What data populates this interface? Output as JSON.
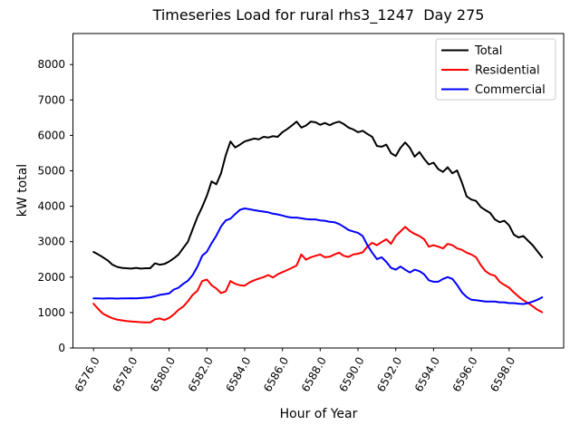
{
  "figure": {
    "background": "#ffffff",
    "spine_color": "#000000",
    "legend_border_color": "#cccccc",
    "legend_background": "#ffffff"
  },
  "chart_data": {
    "type": "line",
    "title": "Timeseries Load for rural rhs3_1247  Day 275",
    "xlabel": "Hour of Year",
    "ylabel": "kW total",
    "xlim": [
      6574.91,
      6600.89
    ],
    "ylim": [
      0,
      8875
    ],
    "grid": false,
    "legend": {
      "position": "upper right"
    },
    "xticks": {
      "values": [
        6576,
        6578,
        6580,
        6582,
        6584,
        6586,
        6588,
        6590,
        6592,
        6594,
        6596,
        6598
      ],
      "labels": [
        "6576.0",
        "6578.0",
        "6580.0",
        "6582.0",
        "6584.0",
        "6586.0",
        "6588.0",
        "6590.0",
        "6592.0",
        "6594.0",
        "6596.0",
        "6598.0"
      ],
      "rotation": -60
    },
    "yticks": {
      "values": [
        0,
        1000,
        2000,
        3000,
        4000,
        5000,
        6000,
        7000,
        8000
      ],
      "labels": [
        "0",
        "1000",
        "2000",
        "3000",
        "4000",
        "5000",
        "6000",
        "7000",
        "8000"
      ]
    },
    "x": [
      6576.0,
      6576.25,
      6576.5,
      6576.75,
      6577.0,
      6577.25,
      6577.5,
      6577.75,
      6578.0,
      6578.25,
      6578.5,
      6578.75,
      6579.0,
      6579.25,
      6579.5,
      6579.75,
      6580.0,
      6580.25,
      6580.5,
      6580.75,
      6581.0,
      6581.25,
      6581.5,
      6581.75,
      6582.0,
      6582.25,
      6582.5,
      6582.75,
      6583.0,
      6583.25,
      6583.5,
      6583.75,
      6584.0,
      6584.25,
      6584.5,
      6584.75,
      6585.0,
      6585.25,
      6585.5,
      6585.75,
      6586.0,
      6586.25,
      6586.5,
      6586.75,
      6587.0,
      6587.25,
      6587.5,
      6587.75,
      6588.0,
      6588.25,
      6588.5,
      6588.75,
      6589.0,
      6589.25,
      6589.5,
      6589.75,
      6590.0,
      6590.25,
      6590.5,
      6590.75,
      6591.0,
      6591.25,
      6591.5,
      6591.75,
      6592.0,
      6592.25,
      6592.5,
      6592.75,
      6593.0,
      6593.25,
      6593.5,
      6593.75,
      6594.0,
      6594.25,
      6594.5,
      6594.75,
      6595.0,
      6595.25,
      6595.5,
      6595.75,
      6596.0,
      6596.25,
      6596.5,
      6596.75,
      6597.0,
      6597.25,
      6597.5,
      6597.75,
      6598.0,
      6598.25,
      6598.5,
      6598.75,
      6599.0,
      6599.25,
      6599.5,
      6599.75
    ],
    "series": [
      {
        "name": "Total",
        "color": "#000000",
        "values": [
          2710,
          2640,
          2560,
          2470,
          2350,
          2290,
          2260,
          2250,
          2240,
          2260,
          2240,
          2250,
          2250,
          2390,
          2350,
          2370,
          2440,
          2530,
          2640,
          2820,
          3000,
          3350,
          3700,
          3980,
          4300,
          4700,
          4620,
          4930,
          5440,
          5830,
          5660,
          5740,
          5830,
          5870,
          5910,
          5890,
          5960,
          5940,
          5980,
          5960,
          6090,
          6180,
          6280,
          6390,
          6220,
          6280,
          6390,
          6370,
          6300,
          6350,
          6290,
          6350,
          6390,
          6320,
          6220,
          6170,
          6090,
          6130,
          6040,
          5960,
          5700,
          5680,
          5740,
          5500,
          5420,
          5650,
          5800,
          5650,
          5400,
          5530,
          5340,
          5180,
          5230,
          5050,
          4970,
          5100,
          4930,
          5010,
          4670,
          4280,
          4190,
          4150,
          3980,
          3890,
          3810,
          3630,
          3550,
          3590,
          3460,
          3200,
          3120,
          3160,
          3030,
          2900,
          2730,
          2560
        ]
      },
      {
        "name": "Residential",
        "color": "#ff0000",
        "values": [
          1250,
          1100,
          970,
          900,
          840,
          800,
          780,
          760,
          750,
          740,
          730,
          725,
          720,
          810,
          835,
          790,
          850,
          950,
          1080,
          1170,
          1320,
          1500,
          1620,
          1890,
          1930,
          1770,
          1680,
          1550,
          1600,
          1890,
          1810,
          1770,
          1760,
          1850,
          1910,
          1960,
          2000,
          2060,
          1990,
          2080,
          2140,
          2200,
          2260,
          2330,
          2640,
          2490,
          2560,
          2600,
          2640,
          2560,
          2575,
          2640,
          2690,
          2600,
          2570,
          2640,
          2660,
          2700,
          2860,
          2970,
          2900,
          2990,
          3070,
          2940,
          3160,
          3290,
          3420,
          3300,
          3220,
          3160,
          3070,
          2860,
          2900,
          2860,
          2810,
          2940,
          2900,
          2810,
          2770,
          2690,
          2640,
          2560,
          2340,
          2170,
          2080,
          2040,
          1870,
          1780,
          1700,
          1570,
          1450,
          1350,
          1270,
          1180,
          1080,
          1010
        ]
      },
      {
        "name": "Commercial",
        "color": "#0000ff",
        "values": [
          1400,
          1400,
          1395,
          1400,
          1400,
          1395,
          1400,
          1400,
          1405,
          1400,
          1410,
          1420,
          1430,
          1460,
          1500,
          1520,
          1540,
          1650,
          1700,
          1810,
          1900,
          2060,
          2300,
          2600,
          2720,
          2960,
          3170,
          3430,
          3600,
          3650,
          3780,
          3900,
          3940,
          3915,
          3890,
          3870,
          3850,
          3830,
          3790,
          3770,
          3740,
          3700,
          3680,
          3680,
          3660,
          3640,
          3630,
          3630,
          3600,
          3590,
          3560,
          3550,
          3500,
          3420,
          3330,
          3290,
          3250,
          3160,
          2900,
          2690,
          2510,
          2560,
          2430,
          2260,
          2210,
          2300,
          2210,
          2130,
          2210,
          2170,
          2080,
          1910,
          1870,
          1870,
          1950,
          2000,
          1950,
          1780,
          1570,
          1440,
          1360,
          1350,
          1330,
          1310,
          1310,
          1310,
          1290,
          1290,
          1265,
          1265,
          1250,
          1240,
          1265,
          1310,
          1360,
          1430
        ]
      }
    ]
  }
}
